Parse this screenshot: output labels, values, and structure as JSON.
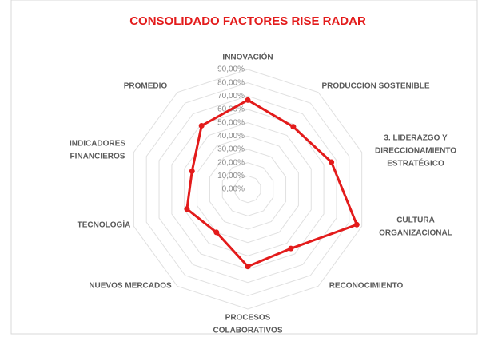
{
  "chart_data": {
    "type": "radar",
    "title": "CONSOLIDADO FACTORES RISE RADAR",
    "categories": [
      [
        "INNOVACIÓN"
      ],
      [
        "PRODUCCION SOSTENIBLE"
      ],
      [
        "3. LIDERAZGO Y",
        "DIRECCIONAMIENTO",
        "ESTRATÉGICO"
      ],
      [
        "CULTURA",
        "ORGANIZACIONAL"
      ],
      [
        "RECONOCIMIENTO"
      ],
      [
        "PROCESOS",
        "COLABORATIVOS"
      ],
      [
        "NUEVOS MERCADOS"
      ],
      [
        "TECNOLOGÍA"
      ],
      [
        "INDICADORES",
        "FINANCIEROS"
      ],
      [
        "PROMEDIO"
      ]
    ],
    "values": [
      67,
      58,
      66,
      86,
      55,
      58,
      40,
      48,
      44,
      59
    ],
    "color": "#e31b1b",
    "ylim": [
      0,
      90
    ],
    "yticks": [
      {
        "value": 0,
        "label": "0,00%"
      },
      {
        "value": 10,
        "label": "10,00%"
      },
      {
        "value": 20,
        "label": "20,00%"
      },
      {
        "value": 30,
        "label": "30,00%"
      },
      {
        "value": 40,
        "label": "40,00%"
      },
      {
        "value": 50,
        "label": "50,00%"
      },
      {
        "value": 60,
        "label": "60,00%"
      },
      {
        "value": 70,
        "label": "70,00%"
      },
      {
        "value": 80,
        "label": "80,00%"
      },
      {
        "value": 90,
        "label": "90,00%"
      }
    ],
    "grid": true
  }
}
